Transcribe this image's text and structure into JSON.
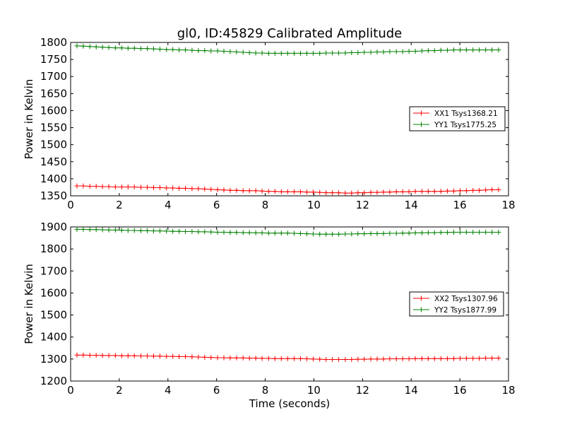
{
  "title": "gl0, ID:45829 Calibrated Amplitude",
  "chart_data": [
    {
      "type": "line",
      "title": "gl0, ID:45829 Calibrated Amplitude",
      "xlabel": "",
      "ylabel": "Power in Kelvin",
      "xlim": [
        0,
        18
      ],
      "ylim": [
        1350,
        1800
      ],
      "xticks": [
        0,
        2,
        4,
        6,
        8,
        10,
        12,
        14,
        16,
        18
      ],
      "yticks": [
        1350,
        1400,
        1450,
        1500,
        1550,
        1600,
        1650,
        1700,
        1750,
        1800
      ],
      "grid": false,
      "legend_position": "center-right",
      "x": [
        0.26,
        0.52,
        0.79,
        1.05,
        1.31,
        1.57,
        1.84,
        2.1,
        2.36,
        2.62,
        2.89,
        3.15,
        3.41,
        3.67,
        3.94,
        4.2,
        4.46,
        4.72,
        4.99,
        5.25,
        5.51,
        5.77,
        6.04,
        6.3,
        6.56,
        6.82,
        7.09,
        7.35,
        7.61,
        7.87,
        8.14,
        8.4,
        8.66,
        8.92,
        9.19,
        9.45,
        9.71,
        9.97,
        10.24,
        10.5,
        10.76,
        11.02,
        11.29,
        11.55,
        11.81,
        12.07,
        12.34,
        12.6,
        12.86,
        13.12,
        13.39,
        13.65,
        13.91,
        14.17,
        14.44,
        14.7,
        14.96,
        15.22,
        15.49,
        15.75,
        16.01,
        16.27,
        16.54,
        16.8,
        17.06,
        17.32,
        17.59
      ],
      "series": [
        {
          "name": "XX1 Tsys1368.21",
          "color": "#ff0000",
          "values": [
            1379,
            1379,
            1378,
            1378,
            1377,
            1377,
            1376,
            1376,
            1376,
            1376,
            1375,
            1375,
            1374,
            1374,
            1373,
            1373,
            1372,
            1372,
            1371,
            1371,
            1370,
            1369,
            1368,
            1367,
            1366,
            1366,
            1365,
            1365,
            1365,
            1364,
            1363,
            1363,
            1362,
            1362,
            1362,
            1362,
            1361,
            1361,
            1360,
            1359,
            1359,
            1359,
            1358,
            1358,
            1359,
            1359,
            1360,
            1360,
            1361,
            1361,
            1362,
            1362,
            1362,
            1363,
            1363,
            1363,
            1363,
            1363,
            1364,
            1364,
            1365,
            1365,
            1366,
            1366,
            1367,
            1368,
            1368
          ]
        },
        {
          "name": "YY1 Tsys1775.25",
          "color": "#008000",
          "values": [
            1790,
            1789,
            1788,
            1787,
            1786,
            1785,
            1784,
            1784,
            1783,
            1783,
            1782,
            1782,
            1781,
            1780,
            1779,
            1779,
            1778,
            1778,
            1777,
            1776,
            1776,
            1775,
            1775,
            1774,
            1773,
            1772,
            1771,
            1770,
            1769,
            1769,
            1768,
            1768,
            1768,
            1768,
            1768,
            1768,
            1768,
            1768,
            1768,
            1769,
            1769,
            1769,
            1769,
            1770,
            1770,
            1771,
            1771,
            1772,
            1772,
            1773,
            1773,
            1773,
            1774,
            1774,
            1775,
            1776,
            1776,
            1777,
            1777,
            1778,
            1778,
            1778,
            1778,
            1778,
            1778,
            1778,
            1778
          ]
        }
      ]
    },
    {
      "type": "line",
      "title": "",
      "xlabel": "Time (seconds)",
      "ylabel": "Power in Kelvin",
      "xlim": [
        0,
        18
      ],
      "ylim": [
        1200,
        1900
      ],
      "xticks": [
        0,
        2,
        4,
        6,
        8,
        10,
        12,
        14,
        16,
        18
      ],
      "yticks": [
        1200,
        1300,
        1400,
        1500,
        1600,
        1700,
        1800,
        1900
      ],
      "grid": false,
      "legend_position": "center-right",
      "x": [
        0.26,
        0.52,
        0.79,
        1.05,
        1.31,
        1.57,
        1.84,
        2.1,
        2.36,
        2.62,
        2.89,
        3.15,
        3.41,
        3.67,
        3.94,
        4.2,
        4.46,
        4.72,
        4.99,
        5.25,
        5.51,
        5.77,
        6.04,
        6.3,
        6.56,
        6.82,
        7.09,
        7.35,
        7.61,
        7.87,
        8.14,
        8.4,
        8.66,
        8.92,
        9.19,
        9.45,
        9.71,
        9.97,
        10.24,
        10.5,
        10.76,
        11.02,
        11.29,
        11.55,
        11.81,
        12.07,
        12.34,
        12.6,
        12.86,
        13.12,
        13.39,
        13.65,
        13.91,
        14.17,
        14.44,
        14.7,
        14.96,
        15.22,
        15.49,
        15.75,
        16.01,
        16.27,
        16.54,
        16.8,
        17.06,
        17.32,
        17.59
      ],
      "series": [
        {
          "name": "XX2 Tsys1307.96",
          "color": "#ff0000",
          "values": [
            1318,
            1318,
            1317,
            1317,
            1316,
            1316,
            1316,
            1315,
            1315,
            1315,
            1314,
            1314,
            1313,
            1313,
            1312,
            1312,
            1311,
            1311,
            1310,
            1309,
            1308,
            1307,
            1306,
            1306,
            1305,
            1305,
            1305,
            1304,
            1304,
            1303,
            1303,
            1302,
            1302,
            1302,
            1302,
            1302,
            1301,
            1300,
            1299,
            1298,
            1298,
            1298,
            1298,
            1298,
            1299,
            1299,
            1300,
            1300,
            1300,
            1301,
            1301,
            1301,
            1301,
            1302,
            1302,
            1302,
            1302,
            1302,
            1302,
            1302,
            1303,
            1303,
            1303,
            1303,
            1304,
            1304,
            1304
          ]
        },
        {
          "name": "YY2 Tsys1877.99",
          "color": "#008000",
          "values": [
            1889,
            1889,
            1888,
            1888,
            1887,
            1886,
            1886,
            1885,
            1884,
            1884,
            1883,
            1883,
            1882,
            1882,
            1881,
            1880,
            1880,
            1879,
            1879,
            1878,
            1878,
            1877,
            1876,
            1876,
            1875,
            1875,
            1874,
            1874,
            1873,
            1873,
            1872,
            1872,
            1872,
            1872,
            1871,
            1870,
            1869,
            1868,
            1867,
            1867,
            1867,
            1867,
            1868,
            1868,
            1869,
            1869,
            1870,
            1870,
            1870,
            1871,
            1871,
            1872,
            1872,
            1873,
            1873,
            1874,
            1874,
            1875,
            1875,
            1876,
            1876,
            1876,
            1876,
            1876,
            1876,
            1876,
            1876
          ]
        }
      ]
    }
  ]
}
